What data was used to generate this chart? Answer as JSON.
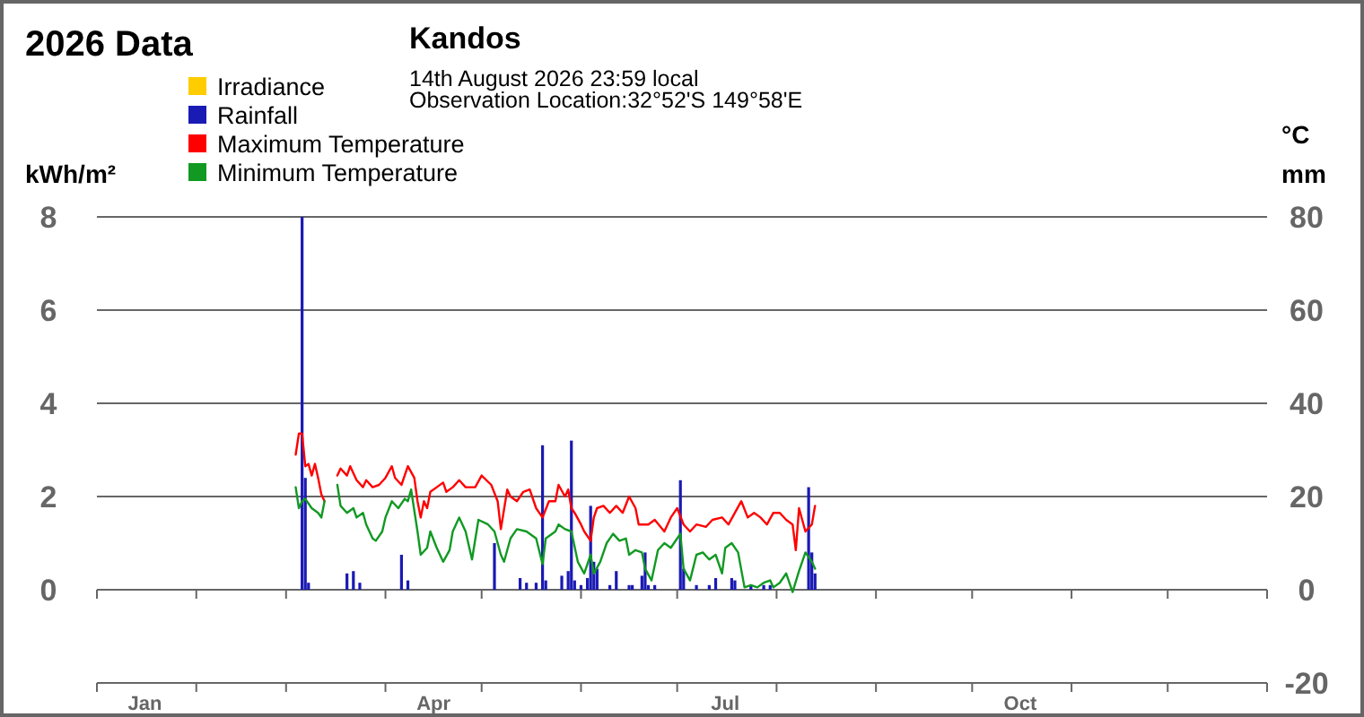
{
  "chart_data": {
    "type": "line",
    "title": "2026 Data",
    "subtitle": "Kandos",
    "annotations": [
      "14th August 2026  23:59 local",
      "Observation Location:32°52'S 149°58'E"
    ],
    "ylabel": "kWh/m²",
    "y2label": "°C\nmm",
    "xlim": [
      "2026-01-01",
      "2027-01-01"
    ],
    "xticks": [
      {
        "value": "2026-01-01",
        "label": null
      },
      {
        "value": "2026-02-01",
        "label": null
      },
      {
        "value": "2026-03-01",
        "label": null
      },
      {
        "value": "2026-04-01",
        "label": null
      },
      {
        "value": "2026-05-01",
        "label": null
      },
      {
        "value": "2026-06-01",
        "label": null
      },
      {
        "value": "2026-07-01",
        "label": null
      },
      {
        "value": "2026-08-01",
        "label": null
      },
      {
        "value": "2026-09-01",
        "label": null
      },
      {
        "value": "2026-10-01",
        "label": null
      },
      {
        "value": "2026-11-01",
        "label": null
      },
      {
        "value": "2026-12-01",
        "label": null
      },
      {
        "value": "2027-01-01",
        "label": null
      },
      {
        "value": "2026-01-16",
        "label": "Jan"
      },
      {
        "value": "2026-04-16",
        "label": "Apr"
      },
      {
        "value": "2026-07-16",
        "label": "Jul"
      },
      {
        "value": "2026-10-16",
        "label": "Oct"
      }
    ],
    "ylim": [
      -2,
      8
    ],
    "yticks": [
      0,
      2,
      4,
      6,
      8
    ],
    "y2lim": [
      -20,
      80
    ],
    "y2ticks": [
      -20,
      0,
      20,
      40,
      60,
      80
    ],
    "grid": "y",
    "legend": "top left",
    "series": [
      {
        "name": "Irradiance",
        "axis": "y",
        "color": "#ffcc00"
      },
      {
        "name": "Rainfall",
        "type": "bar",
        "axis": "y2",
        "color": "#1a1ab4",
        "x": [
          "2026-03-06",
          "2026-03-07",
          "2026-03-08",
          "2026-03-20",
          "2026-03-22",
          "2026-03-24",
          "2026-04-06",
          "2026-04-08",
          "2026-05-05",
          "2026-05-13",
          "2026-05-15",
          "2026-05-18",
          "2026-05-20",
          "2026-05-21",
          "2026-05-26",
          "2026-05-28",
          "2026-05-29",
          "2026-05-30",
          "2026-06-01",
          "2026-06-03",
          "2026-06-04",
          "2026-06-05",
          "2026-06-06",
          "2026-06-10",
          "2026-06-12",
          "2026-06-16",
          "2026-06-17",
          "2026-06-20",
          "2026-06-21",
          "2026-06-22",
          "2026-06-24",
          "2026-07-02",
          "2026-07-03",
          "2026-07-07",
          "2026-07-11",
          "2026-07-13",
          "2026-07-18",
          "2026-07-19",
          "2026-07-24",
          "2026-07-28",
          "2026-07-30",
          "2026-08-11",
          "2026-08-12",
          "2026-08-13"
        ],
        "values": [
          80,
          24,
          1.5,
          3.5,
          4,
          1.5,
          7.5,
          2,
          10,
          2.5,
          1.5,
          1.5,
          31,
          2,
          3,
          4,
          32,
          2,
          1,
          2.5,
          18,
          6,
          4.5,
          1,
          4,
          1,
          1,
          3,
          8,
          1,
          1,
          23.5,
          4.5,
          1,
          1,
          2.5,
          2.5,
          2,
          1,
          1,
          1,
          22,
          8,
          3.5
        ]
      },
      {
        "name": "Maximum Temperature",
        "axis": "y2",
        "color": "#ff0000",
        "x": [
          "2026-03-04",
          "2026-03-05",
          "2026-03-06",
          "2026-03-07",
          "2026-03-08",
          "2026-03-09",
          "2026-03-10",
          "2026-03-11",
          "2026-03-12",
          "2026-03-13",
          "2026-03-14",
          "2026-03-17",
          "2026-03-18",
          "2026-03-20",
          "2026-03-21",
          "2026-03-23",
          "2026-03-25",
          "2026-03-26",
          "2026-03-28",
          "2026-03-30",
          "2026-04-01",
          "2026-04-03",
          "2026-04-04",
          "2026-04-06",
          "2026-04-08",
          "2026-04-10",
          "2026-04-11",
          "2026-04-12",
          "2026-04-13",
          "2026-04-14",
          "2026-04-15",
          "2026-04-17",
          "2026-04-19",
          "2026-04-20",
          "2026-04-22",
          "2026-04-24",
          "2026-04-26",
          "2026-04-29",
          "2026-05-01",
          "2026-05-04",
          "2026-05-06",
          "2026-05-07",
          "2026-05-09",
          "2026-05-10",
          "2026-05-12",
          "2026-05-14",
          "2026-05-16",
          "2026-05-18",
          "2026-05-20",
          "2026-05-22",
          "2026-05-24",
          "2026-05-25",
          "2026-05-27",
          "2026-05-28",
          "2026-05-29",
          "2026-05-30",
          "2026-06-01",
          "2026-06-02",
          "2026-06-04",
          "2026-06-05",
          "2026-06-06",
          "2026-06-08",
          "2026-06-10",
          "2026-06-12",
          "2026-06-14",
          "2026-06-16",
          "2026-06-18",
          "2026-06-19",
          "2026-06-22",
          "2026-06-24",
          "2026-06-27",
          "2026-06-29",
          "2026-07-01",
          "2026-07-03",
          "2026-07-05",
          "2026-07-07",
          "2026-07-10",
          "2026-07-12",
          "2026-07-15",
          "2026-07-17",
          "2026-07-21",
          "2026-07-23",
          "2026-07-25",
          "2026-07-27",
          "2026-07-29",
          "2026-07-31",
          "2026-08-02",
          "2026-08-04",
          "2026-08-06",
          "2026-08-07",
          "2026-08-08",
          "2026-08-10",
          "2026-08-12",
          "2026-08-13"
        ],
        "values": [
          29,
          33.5,
          33.5,
          26.5,
          27,
          24.5,
          27,
          24,
          20.5,
          19,
          null,
          24.5,
          26,
          24.5,
          26.5,
          23.5,
          22,
          23.5,
          22,
          22.5,
          24,
          26.5,
          24,
          22.5,
          26.5,
          24,
          19,
          15.5,
          19,
          17.5,
          21,
          22,
          23,
          21,
          22,
          23.5,
          22,
          22,
          24.5,
          22.5,
          19,
          13,
          21.5,
          20,
          19,
          21,
          21.5,
          17.5,
          15.5,
          19,
          19,
          22.5,
          20,
          21.5,
          17.5,
          16.5,
          14,
          12.5,
          10.5,
          15.5,
          17.5,
          18,
          16.5,
          18,
          16.5,
          20,
          17.5,
          14,
          14,
          15,
          12.5,
          15.5,
          17.5,
          14,
          12.5,
          14,
          13.5,
          15,
          15.5,
          14,
          19,
          15.5,
          16.5,
          15.5,
          14,
          16.5,
          16.5,
          15,
          14,
          8.5,
          17.5,
          12.5,
          14,
          18
        ]
      },
      {
        "name": "Minimum Temperature",
        "axis": "y2",
        "color": "#119922",
        "x": [
          "2026-03-04",
          "2026-03-05",
          "2026-03-06",
          "2026-03-07",
          "2026-03-09",
          "2026-03-11",
          "2026-03-12",
          "2026-03-13",
          "2026-03-14",
          "2026-03-17",
          "2026-03-18",
          "2026-03-20",
          "2026-03-22",
          "2026-03-23",
          "2026-03-25",
          "2026-03-26",
          "2026-03-28",
          "2026-03-29",
          "2026-03-31",
          "2026-04-01",
          "2026-04-03",
          "2026-04-05",
          "2026-04-07",
          "2026-04-08",
          "2026-04-09",
          "2026-04-11",
          "2026-04-12",
          "2026-04-14",
          "2026-04-15",
          "2026-04-17",
          "2026-04-19",
          "2026-04-21",
          "2026-04-22",
          "2026-04-24",
          "2026-04-26",
          "2026-04-28",
          "2026-04-30",
          "2026-05-03",
          "2026-05-05",
          "2026-05-07",
          "2026-05-08",
          "2026-05-10",
          "2026-05-12",
          "2026-05-15",
          "2026-05-18",
          "2026-05-20",
          "2026-05-21",
          "2026-05-24",
          "2026-05-25",
          "2026-05-27",
          "2026-05-29",
          "2026-05-31",
          "2026-06-02",
          "2026-06-04",
          "2026-06-05",
          "2026-06-07",
          "2026-06-09",
          "2026-06-11",
          "2026-06-13",
          "2026-06-15",
          "2026-06-16",
          "2026-06-18",
          "2026-06-20",
          "2026-06-21",
          "2026-06-23",
          "2026-06-25",
          "2026-06-27",
          "2026-06-29",
          "2026-07-01",
          "2026-07-02",
          "2026-07-03",
          "2026-07-05",
          "2026-07-07",
          "2026-07-09",
          "2026-07-11",
          "2026-07-13",
          "2026-07-15",
          "2026-07-16",
          "2026-07-18",
          "2026-07-20",
          "2026-07-22",
          "2026-07-24",
          "2026-07-26",
          "2026-07-28",
          "2026-07-30",
          "2026-07-31",
          "2026-08-02",
          "2026-08-04",
          "2026-08-06",
          "2026-08-08",
          "2026-08-10",
          "2026-08-12",
          "2026-08-13"
        ],
        "values": [
          22,
          17.5,
          19,
          19.5,
          17.5,
          16.5,
          15.5,
          19,
          null,
          22.5,
          18,
          16.5,
          17.5,
          15.5,
          16.5,
          14,
          11,
          10.5,
          12.5,
          15.5,
          19,
          17.5,
          19.5,
          19,
          21.5,
          12.5,
          7.5,
          9,
          12.5,
          9,
          6,
          8.5,
          12.5,
          15.5,
          12.5,
          6.5,
          15,
          14,
          12.5,
          7.5,
          6,
          11,
          13,
          12.5,
          11,
          5.5,
          11,
          12.5,
          14,
          13,
          12.5,
          6,
          3.5,
          7.5,
          3.5,
          6,
          10,
          12,
          10.5,
          11,
          7.5,
          8.5,
          8,
          4.5,
          2,
          8.5,
          10,
          9,
          11,
          12,
          4.5,
          2,
          7.5,
          8,
          6.5,
          7.5,
          3.5,
          9,
          10,
          8,
          0.5,
          1,
          0.5,
          1.5,
          2,
          0.5,
          1.5,
          3.5,
          -0.5,
          4,
          8,
          6,
          4.5
        ]
      }
    ]
  }
}
